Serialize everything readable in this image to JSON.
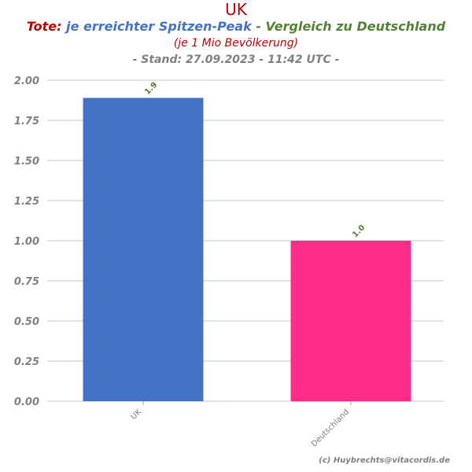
{
  "header": {
    "country": "UK",
    "title_part1": "Tote:",
    "title_part2": "je erreichter Spitzen-Peak",
    "title_part3": "- Vergleich zu Deutschland",
    "subtitle": "(je 1 Mio Bevölkerung)",
    "stand": "- Stand: 27.09.2023 - 11:42 UTC -"
  },
  "colors": {
    "title_red": "#c00000",
    "title_blue": "#4472c4",
    "title_green": "#548235",
    "grey_text": "#808080",
    "gridline": "#d9d9d9"
  },
  "chart_data": {
    "type": "bar",
    "categories": [
      "UK",
      "Deutschland"
    ],
    "values": [
      1.89,
      1.0
    ],
    "data_labels": [
      "1.9",
      "1.0"
    ],
    "bar_colors": [
      "#4472c4",
      "#ff2d8a"
    ],
    "ylim": [
      0,
      2.0
    ],
    "yticks": [
      "0.00",
      "0.25",
      "0.50",
      "0.75",
      "1.00",
      "1.25",
      "1.50",
      "1.75",
      "2.00"
    ],
    "xlabel": "",
    "ylabel": "",
    "grid": true
  },
  "footer": {
    "credit": "(c) Huybrechts@vitacordis.de"
  }
}
